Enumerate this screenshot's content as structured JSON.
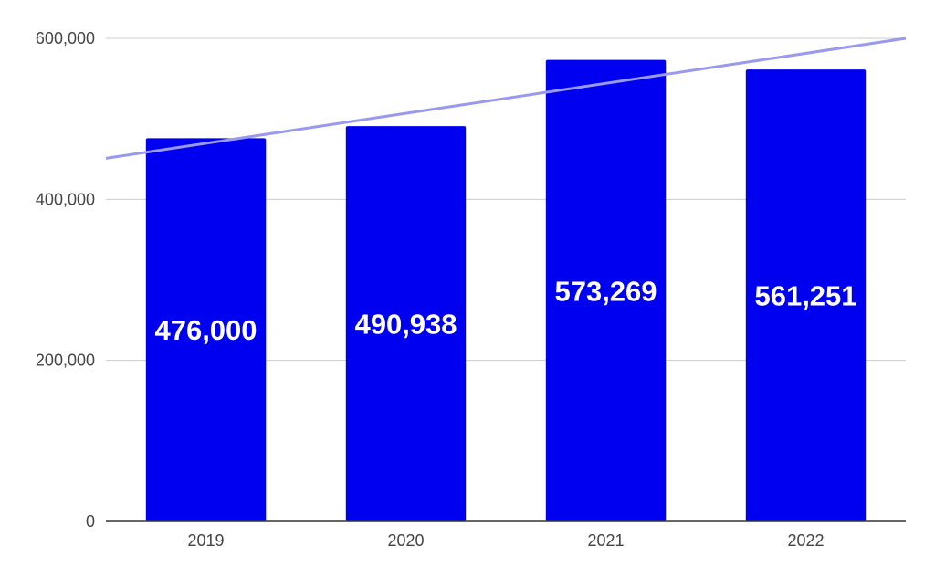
{
  "chart_data": {
    "type": "bar",
    "title": "",
    "xlabel": "",
    "ylabel": "",
    "categories": [
      "2019",
      "2020",
      "2021",
      "2022"
    ],
    "values": [
      476000,
      490938,
      573269,
      561251
    ],
    "value_labels": [
      "476,000",
      "490,938",
      "573,269",
      "561,251"
    ],
    "yticks": [
      0,
      200000,
      400000,
      600000
    ],
    "ytick_labels": [
      "0",
      "200,000",
      "400,000",
      "600,000"
    ],
    "ylim": [
      0,
      600000
    ],
    "grid": true,
    "legend": "none",
    "trendline": {
      "type": "linear",
      "start_value": 451000,
      "end_value": 600000
    },
    "colors": {
      "bar": "#0000f0",
      "trendline": "#9999f0",
      "grid": "#cccccc",
      "axis": "#333333"
    }
  }
}
